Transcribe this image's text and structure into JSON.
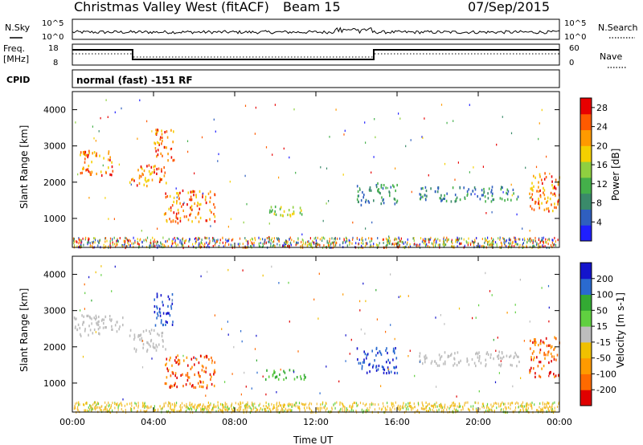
{
  "header": {
    "title": "Christmas Valley West (fitACF)",
    "beam": "Beam 15",
    "date": "07/Sep/2015"
  },
  "panels": {
    "nsky": {
      "left_label": "N.Sky",
      "right_label": "N.Search",
      "tick_top": "10^5",
      "tick_bottom": "10^0",
      "tick_top_right": "10^5",
      "tick_bottom_right": "10^0"
    },
    "freq": {
      "left_label_1": "Freq.",
      "left_label_2": "[MHz]",
      "right_label": "Nave",
      "tick_top": "18",
      "tick_bottom": "8",
      "tick_top_right": "60",
      "tick_bottom_right": "0"
    },
    "cpid": {
      "left_label": "CPID",
      "text": "normal (fast) -151 RF"
    }
  },
  "colors": {
    "power": [
      "#1f1fff",
      "#2f5fbf",
      "#3a8a6a",
      "#44b04a",
      "#8fd040",
      "#f4d000",
      "#ff9a00",
      "#ff5a00",
      "#e80000"
    ],
    "velocity": [
      "#e00000",
      "#ff6a00",
      "#ff9a00",
      "#f0c000",
      "#bdbdbd",
      "#60d040",
      "#33aa33",
      "#2a6ad0",
      "#1414cc"
    ],
    "ground": "#f2bd38"
  },
  "chart_data": [
    {
      "type": "heatmap",
      "name": "Power",
      "xlabel": "",
      "ylabel": "Slant Range [km]",
      "xlim_hours": [
        0,
        24
      ],
      "ylim_km": [
        200,
        4500
      ],
      "yticks": [
        "1000",
        "2000",
        "3000",
        "4000"
      ],
      "colorbar": {
        "label": "Power [dB]",
        "ticks": [
          "4",
          "8",
          "12",
          "16",
          "20",
          "24",
          "28"
        ],
        "range": [
          0,
          30
        ]
      },
      "features": [
        {
          "t0": 0.3,
          "t1": 2.0,
          "r0": 2200,
          "r1": 2900,
          "level": "high"
        },
        {
          "t0": 2.8,
          "t1": 4.6,
          "r0": 1900,
          "r1": 2500,
          "level": "high"
        },
        {
          "t0": 4.5,
          "t1": 7.0,
          "r0": 900,
          "r1": 1800,
          "level": "high"
        },
        {
          "t0": 4.0,
          "t1": 5.0,
          "r0": 2600,
          "r1": 3500,
          "level": "high"
        },
        {
          "t0": 9.5,
          "t1": 11.5,
          "r0": 1100,
          "r1": 1400,
          "level": "mid"
        },
        {
          "t0": 14.0,
          "t1": 16.0,
          "r0": 1400,
          "r1": 2000,
          "level": "low"
        },
        {
          "t0": 17.0,
          "t1": 22.0,
          "r0": 1500,
          "r1": 1900,
          "level": "low"
        },
        {
          "t0": 22.5,
          "t1": 24.0,
          "r0": 1200,
          "r1": 2300,
          "level": "high"
        }
      ]
    },
    {
      "type": "heatmap",
      "name": "Velocity",
      "xlabel": "Time UT",
      "ylabel": "Slant Range [km]",
      "xlim_hours": [
        0,
        24
      ],
      "ylim_km": [
        200,
        4500
      ],
      "xticks": [
        "00:00",
        "04:00",
        "08:00",
        "12:00",
        "16:00",
        "20:00",
        "00:00"
      ],
      "yticks": [
        "1000",
        "2000",
        "3000",
        "4000"
      ],
      "colorbar": {
        "label": "Velocity [m s-1]",
        "ticks": [
          "200",
          "100",
          "50",
          "15",
          "-15",
          "-50",
          "-100",
          "-200"
        ],
        "range": [
          -250,
          250
        ]
      },
      "features": [
        {
          "t0": 0.0,
          "t1": 2.5,
          "r0": 2300,
          "r1": 2900,
          "level": "ground"
        },
        {
          "t0": 2.8,
          "t1": 4.6,
          "r0": 1900,
          "r1": 2500,
          "level": "ground"
        },
        {
          "t0": 4.5,
          "t1": 7.0,
          "r0": 900,
          "r1": 1800,
          "level": "negative"
        },
        {
          "t0": 4.0,
          "t1": 5.0,
          "r0": 2600,
          "r1": 3500,
          "level": "positive"
        },
        {
          "t0": 9.5,
          "t1": 11.5,
          "r0": 1100,
          "r1": 1400,
          "level": "weak"
        },
        {
          "t0": 14.0,
          "t1": 16.0,
          "r0": 1300,
          "r1": 2000,
          "level": "positive"
        },
        {
          "t0": 17.0,
          "t1": 22.0,
          "r0": 1500,
          "r1": 1900,
          "level": "ground"
        },
        {
          "t0": 22.5,
          "t1": 24.0,
          "r0": 1200,
          "r1": 2300,
          "level": "negative"
        }
      ]
    }
  ]
}
